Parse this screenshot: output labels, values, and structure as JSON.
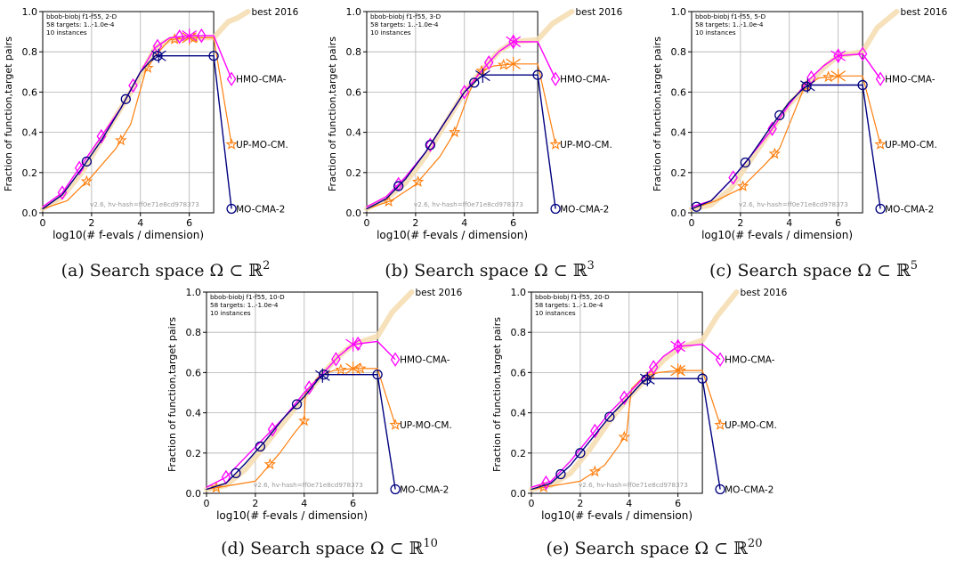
{
  "chart_data": [
    {
      "type": "line",
      "caption": "(a) Search space Ω ⊂ ℝ",
      "caption_sup": "2",
      "info": [
        "bbob-biobj f1-f55, 2-D",
        "58 targets: 1..-1.0e-4",
        "10 instances"
      ],
      "watermark": "v2.6, hv-hash=ff0e71e8cd978373",
      "xlabel": "log10(# f-evals / dimension)",
      "ylabel": "Fraction of function,target pairs",
      "xlim": [
        0,
        8.6
      ],
      "ylim": [
        0,
        1.0
      ],
      "xticks": [
        0,
        2,
        4,
        6
      ],
      "yticks": [
        0.0,
        0.2,
        0.4,
        0.6,
        0.8,
        1.0
      ],
      "grid": true,
      "budget_x": 7.0,
      "series": [
        {
          "name": "best 2016",
          "style": "best",
          "x": [
            0,
            0.8,
            1.6,
            2.4,
            3.2,
            4.0,
            4.6,
            5.2,
            6.0,
            7.0,
            7.3,
            7.6,
            8.0,
            8.4
          ],
          "y": [
            0.02,
            0.08,
            0.2,
            0.36,
            0.52,
            0.68,
            0.82,
            0.86,
            0.87,
            0.87,
            0.91,
            0.95,
            0.97,
            1.0
          ]
        },
        {
          "name": "HMO-CMA-",
          "style": "hmo",
          "x": [
            0,
            0.8,
            1.6,
            2.4,
            3.2,
            4.0,
            4.6,
            5.2,
            6.0,
            7.0
          ],
          "y": [
            0.03,
            0.1,
            0.24,
            0.38,
            0.52,
            0.7,
            0.82,
            0.87,
            0.88,
            0.88
          ],
          "end_y": 0.665,
          "marker_x": [
            0.8,
            1.5,
            2.4,
            3.7,
            4.7,
            5.6,
            6.5
          ],
          "star_x": 6.0
        },
        {
          "name": "UP-MO-CM.",
          "style": "up",
          "x": [
            0,
            1.0,
            2.0,
            3.0,
            3.6,
            4.2,
            4.6,
            5.2,
            6.0,
            7.0
          ],
          "y": [
            0.02,
            0.06,
            0.18,
            0.32,
            0.44,
            0.7,
            0.78,
            0.86,
            0.87,
            0.87
          ],
          "end_y": 0.34,
          "marker_x": [
            1.8,
            3.2,
            4.3,
            5.4,
            6.2
          ],
          "star_x": 6.0
        },
        {
          "name": "MO-CMA-2",
          "style": "mo",
          "x": [
            0,
            0.8,
            1.6,
            2.4,
            3.2,
            4.0,
            4.6,
            4.8,
            7.0
          ],
          "y": [
            0.02,
            0.09,
            0.22,
            0.36,
            0.52,
            0.7,
            0.78,
            0.78,
            0.78
          ],
          "end_y": 0.02,
          "marker_x": [
            1.8,
            3.4,
            4.7,
            7.0
          ],
          "star_x": 4.75
        }
      ]
    },
    {
      "type": "line",
      "caption": "(b) Search space Ω ⊂ ℝ",
      "caption_sup": "3",
      "info": [
        "bbob-biobj f1-f55, 3-D",
        "58 targets: 1..-1.0e-4",
        "10 instances"
      ],
      "watermark": "v2.6, hv-hash=ff0e71e8cd978373",
      "xlabel": "log10(# f-evals / dimension)",
      "ylabel": "Fraction of function,target pairs",
      "xlim": [
        0,
        8.6
      ],
      "ylim": [
        0,
        1.0
      ],
      "xticks": [
        0,
        2,
        4,
        6
      ],
      "yticks": [
        0.0,
        0.2,
        0.4,
        0.6,
        0.8,
        1.0
      ],
      "grid": true,
      "budget_x": 7.0,
      "series": [
        {
          "name": "best 2016",
          "style": "best",
          "x": [
            0,
            0.8,
            1.6,
            2.4,
            3.2,
            4.0,
            4.8,
            5.4,
            6.0,
            7.0,
            7.3,
            7.6,
            8.0,
            8.4
          ],
          "y": [
            0.02,
            0.07,
            0.15,
            0.28,
            0.44,
            0.6,
            0.72,
            0.8,
            0.85,
            0.86,
            0.9,
            0.94,
            0.97,
            1.0
          ]
        },
        {
          "name": "HMO-CMA-",
          "style": "hmo",
          "x": [
            0,
            0.8,
            1.6,
            2.4,
            3.2,
            4.0,
            4.8,
            5.4,
            6.0,
            7.0
          ],
          "y": [
            0.03,
            0.08,
            0.18,
            0.3,
            0.45,
            0.6,
            0.72,
            0.8,
            0.85,
            0.85
          ],
          "end_y": 0.665,
          "marker_x": [
            1.3,
            2.6,
            4.0,
            5.0,
            6.0
          ],
          "star_x": 6.0
        },
        {
          "name": "UP-MO-CM.",
          "style": "up",
          "x": [
            0,
            1.0,
            2.0,
            3.0,
            3.6,
            4.2,
            4.6,
            5.2,
            6.0,
            7.0
          ],
          "y": [
            0.02,
            0.06,
            0.14,
            0.28,
            0.4,
            0.6,
            0.7,
            0.73,
            0.74,
            0.74
          ],
          "end_y": 0.34,
          "marker_x": [
            0.9,
            2.1,
            3.6,
            4.7,
            5.6
          ],
          "star_x": 6.0
        },
        {
          "name": "MO-CMA-2",
          "style": "mo",
          "x": [
            0,
            0.8,
            1.6,
            2.4,
            3.2,
            4.0,
            4.6,
            4.8,
            7.0
          ],
          "y": [
            0.02,
            0.07,
            0.17,
            0.3,
            0.45,
            0.6,
            0.67,
            0.685,
            0.685
          ],
          "end_y": 0.02,
          "marker_x": [
            1.3,
            2.6,
            4.4,
            7.0
          ],
          "star_x": 4.75
        }
      ]
    },
    {
      "type": "line",
      "caption": "(c) Search space Ω ⊂ ℝ",
      "caption_sup": "5",
      "info": [
        "bbob-biobj f1-f55, 5-D",
        "58 targets: 1..-1.0e-4",
        "10 instances"
      ],
      "watermark": "v2.6, hv-hash=ff0e71e8cd978373",
      "xlabel": "log10(# f-evals / dimension)",
      "ylabel": "Fraction of function,target pairs",
      "xlim": [
        0,
        8.6
      ],
      "ylim": [
        0,
        1.0
      ],
      "xticks": [
        0,
        2,
        4,
        6
      ],
      "yticks": [
        0.0,
        0.2,
        0.4,
        0.6,
        0.8,
        1.0
      ],
      "grid": true,
      "budget_x": 7.0,
      "series": [
        {
          "name": "best 2016",
          "style": "best",
          "x": [
            0,
            0.8,
            1.6,
            2.4,
            3.2,
            4.0,
            4.8,
            5.4,
            6.0,
            7.0,
            7.3,
            7.6,
            8.0,
            8.4
          ],
          "y": [
            0.02,
            0.04,
            0.12,
            0.26,
            0.4,
            0.54,
            0.64,
            0.72,
            0.78,
            0.8,
            0.86,
            0.92,
            0.96,
            1.0
          ]
        },
        {
          "name": "HMO-CMA-",
          "style": "hmo",
          "x": [
            0,
            0.8,
            1.6,
            2.4,
            3.2,
            4.0,
            4.8,
            5.4,
            6.0,
            7.0
          ],
          "y": [
            0.03,
            0.06,
            0.16,
            0.28,
            0.4,
            0.54,
            0.66,
            0.73,
            0.78,
            0.79
          ],
          "end_y": 0.665,
          "marker_x": [
            1.7,
            3.3,
            4.9,
            6.0,
            7.0
          ],
          "star_x": 6.0
        },
        {
          "name": "UP-MO-CM.",
          "style": "up",
          "x": [
            0,
            1.0,
            2.0,
            3.0,
            3.6,
            4.2,
            4.6,
            5.2,
            6.0,
            7.0
          ],
          "y": [
            0.02,
            0.06,
            0.12,
            0.24,
            0.32,
            0.5,
            0.62,
            0.67,
            0.68,
            0.68
          ],
          "end_y": 0.34,
          "marker_x": [
            2.1,
            3.4,
            4.7,
            5.6
          ],
          "star_x": 6.0
        },
        {
          "name": "MO-CMA-2",
          "style": "mo",
          "x": [
            0,
            0.8,
            1.6,
            2.4,
            3.2,
            4.0,
            4.6,
            4.8,
            7.0
          ],
          "y": [
            0.02,
            0.06,
            0.16,
            0.28,
            0.42,
            0.55,
            0.62,
            0.635,
            0.635
          ],
          "end_y": 0.02,
          "marker_x": [
            0.2,
            2.2,
            3.6,
            4.7,
            7.0
          ],
          "star_x": 4.75
        }
      ]
    },
    {
      "type": "line",
      "caption": "(d) Search space Ω ⊂ ℝ",
      "caption_sup": "10",
      "info": [
        "bbob-biobj f1-f55, 10-D",
        "58 targets: 1..-1.0e-4",
        "10 instances"
      ],
      "watermark": "v2.6, hv-hash=ff0e71e8cd978373",
      "xlabel": "log10(# f-evals / dimension)",
      "ylabel": "Fraction of function,target pairs",
      "xlim": [
        0,
        8.6
      ],
      "ylim": [
        0,
        1.0
      ],
      "xticks": [
        0,
        2,
        4,
        6
      ],
      "yticks": [
        0.0,
        0.2,
        0.4,
        0.6,
        0.8,
        1.0
      ],
      "grid": true,
      "budget_x": 7.0,
      "series": [
        {
          "name": "best 2016",
          "style": "best",
          "x": [
            0,
            0.8,
            1.6,
            2.4,
            3.2,
            4.0,
            4.8,
            5.4,
            6.0,
            7.0,
            7.3,
            7.6,
            8.0,
            8.4
          ],
          "y": [
            0.02,
            0.04,
            0.12,
            0.24,
            0.36,
            0.48,
            0.6,
            0.68,
            0.74,
            0.78,
            0.84,
            0.9,
            0.95,
            1.0
          ]
        },
        {
          "name": "HMO-CMA-",
          "style": "hmo",
          "x": [
            0,
            0.8,
            1.6,
            2.4,
            3.2,
            4.0,
            4.8,
            5.4,
            6.0,
            7.0
          ],
          "y": [
            0.03,
            0.08,
            0.18,
            0.28,
            0.38,
            0.5,
            0.6,
            0.68,
            0.74,
            0.755
          ],
          "end_y": 0.665,
          "marker_x": [
            0.8,
            2.7,
            4.2,
            5.3,
            6.2
          ],
          "star_x": 6.0
        },
        {
          "name": "UP-MO-CM.",
          "style": "up",
          "x": [
            0,
            1.0,
            2.0,
            3.0,
            3.6,
            4.0,
            4.05,
            4.6,
            5.2,
            6.0,
            7.0
          ],
          "y": [
            0.02,
            0.04,
            0.06,
            0.2,
            0.3,
            0.36,
            0.5,
            0.58,
            0.61,
            0.62,
            0.62
          ],
          "end_y": 0.34,
          "marker_x": [
            0.4,
            2.6,
            4.0,
            5.5,
            6.3
          ],
          "star_x": 6.0
        },
        {
          "name": "MO-CMA-2",
          "style": "mo",
          "x": [
            0,
            0.8,
            1.6,
            2.4,
            3.2,
            4.0,
            4.6,
            4.8,
            7.0
          ],
          "y": [
            0.02,
            0.05,
            0.15,
            0.26,
            0.38,
            0.48,
            0.57,
            0.59,
            0.59
          ],
          "end_y": 0.02,
          "marker_x": [
            1.2,
            2.2,
            3.7,
            4.8,
            7.0
          ],
          "star_x": 4.75
        }
      ]
    },
    {
      "type": "line",
      "caption": "(e) Search space Ω ⊂ ℝ",
      "caption_sup": "20",
      "info": [
        "bbob-biobj f1-f55, 20-D",
        "58 targets: 1..-1.0e-4",
        "10 instances"
      ],
      "watermark": "v2.6, hv-hash=ff0e71e8cd978373",
      "xlabel": "log10(# f-evals / dimension)",
      "ylabel": "Fraction of function,target pairs",
      "xlim": [
        0,
        8.6
      ],
      "ylim": [
        0,
        1.0
      ],
      "xticks": [
        0,
        2,
        4,
        6
      ],
      "yticks": [
        0.0,
        0.2,
        0.4,
        0.6,
        0.8,
        1.0
      ],
      "grid": true,
      "budget_x": 7.0,
      "series": [
        {
          "name": "best 2016",
          "style": "best",
          "x": [
            0,
            0.8,
            1.6,
            2.4,
            3.2,
            4.0,
            4.8,
            5.4,
            6.0,
            7.0,
            7.3,
            7.6,
            8.0,
            8.4
          ],
          "y": [
            0.02,
            0.04,
            0.1,
            0.22,
            0.36,
            0.48,
            0.58,
            0.66,
            0.72,
            0.76,
            0.82,
            0.88,
            0.94,
            1.0
          ]
        },
        {
          "name": "HMO-CMA-",
          "style": "hmo",
          "x": [
            0,
            0.8,
            1.6,
            2.4,
            3.2,
            4.0,
            4.8,
            5.4,
            6.0,
            7.0
          ],
          "y": [
            0.03,
            0.06,
            0.16,
            0.28,
            0.4,
            0.5,
            0.6,
            0.68,
            0.73,
            0.74
          ],
          "end_y": 0.665,
          "marker_x": [
            0.6,
            2.6,
            3.8,
            5.0,
            6.0
          ],
          "star_x": 6.0
        },
        {
          "name": "UP-MO-CM.",
          "style": "up",
          "x": [
            0,
            1.0,
            2.0,
            3.0,
            3.6,
            3.9,
            4.0,
            4.1,
            4.6,
            5.2,
            6.0,
            7.0
          ],
          "y": [
            0.02,
            0.04,
            0.06,
            0.14,
            0.24,
            0.3,
            0.42,
            0.52,
            0.58,
            0.6,
            0.61,
            0.61
          ],
          "end_y": 0.34,
          "marker_x": [
            0.5,
            2.6,
            3.8,
            4.9,
            6.1
          ],
          "star_x": 6.0
        },
        {
          "name": "MO-CMA-2",
          "style": "mo",
          "x": [
            0,
            0.8,
            1.6,
            2.4,
            3.2,
            4.0,
            4.6,
            4.8,
            7.0
          ],
          "y": [
            0.02,
            0.05,
            0.14,
            0.26,
            0.38,
            0.48,
            0.56,
            0.57,
            0.57
          ],
          "end_y": 0.02,
          "marker_x": [
            1.2,
            2.0,
            3.2,
            4.7,
            7.0
          ],
          "star_x": 4.75
        }
      ]
    }
  ],
  "colors": {
    "best": "#f5deb3",
    "hmo": "#ff00ff",
    "up": "#ff7f0e",
    "mo": "#000080",
    "grid": "#b0b0b0",
    "watermark": "#999999"
  }
}
